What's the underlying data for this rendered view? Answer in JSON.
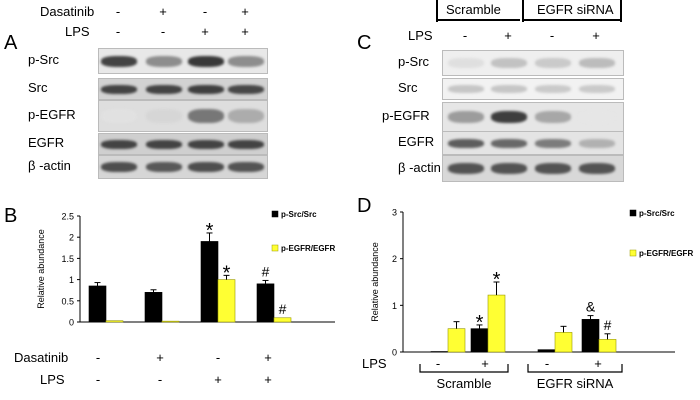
{
  "panel_letters": {
    "A": "A",
    "B": "B",
    "C": "C",
    "D": "D"
  },
  "panelA": {
    "treatments": [
      {
        "name": "Dasatinib",
        "signs": [
          "-",
          "+",
          "-",
          "+"
        ]
      },
      {
        "name": "LPS",
        "signs": [
          "-",
          "-",
          "+",
          "+"
        ]
      }
    ],
    "blots": [
      {
        "label": "p-Src",
        "bg": "#e8e8e8",
        "intensity": [
          0.8,
          0.45,
          0.85,
          0.45
        ]
      },
      {
        "label": "Src",
        "bg": "#d2d2d2",
        "intensity": [
          0.8,
          0.8,
          0.82,
          0.78
        ]
      },
      {
        "label": "p-EGFR",
        "bg": "#dedede",
        "intensity": [
          0.05,
          0.1,
          0.55,
          0.3
        ]
      },
      {
        "label": "EGFR",
        "bg": "#cfcfcf",
        "intensity": [
          0.8,
          0.8,
          0.8,
          0.8
        ]
      },
      {
        "label": "β -actin",
        "bg": "#d6d6d6",
        "intensity": [
          0.75,
          0.7,
          0.75,
          0.72
        ]
      }
    ]
  },
  "panelC": {
    "groups": [
      "Scramble",
      "EGFR siRNA"
    ],
    "treatment": {
      "name": "LPS",
      "signs": [
        "-",
        "+",
        "-",
        "+"
      ]
    },
    "blots": [
      {
        "label": "p-Src",
        "bg": "#efefef",
        "intensity": [
          0.08,
          0.22,
          0.18,
          0.25
        ]
      },
      {
        "label": "Src",
        "bg": "#f2f2f2",
        "intensity": [
          0.2,
          0.2,
          0.18,
          0.18
        ]
      },
      {
        "label": "p-EGFR",
        "bg": "#e6e6e6",
        "intensity": [
          0.4,
          0.85,
          0.35,
          0.05
        ]
      },
      {
        "label": "EGFR",
        "bg": "#e4e4e4",
        "intensity": [
          0.7,
          0.65,
          0.55,
          0.3
        ]
      },
      {
        "label": "β -actin",
        "bg": "#d8d8d8",
        "intensity": [
          0.75,
          0.75,
          0.75,
          0.75
        ]
      }
    ]
  },
  "panelB": {
    "treatments": [
      {
        "name": "Dasatinib",
        "signs": [
          "-",
          "+",
          "-",
          "+"
        ]
      },
      {
        "name": "LPS",
        "signs": [
          "-",
          "-",
          "+",
          "+"
        ]
      }
    ]
  },
  "panelD": {
    "groups": [
      "Scramble",
      "EGFR siRNA"
    ],
    "treatment": {
      "name": "LPS",
      "signs": [
        "-",
        "+",
        "-",
        "+"
      ]
    }
  },
  "colors": {
    "black_series": "#000000",
    "yellow_series": "#ffff33",
    "yellow_edge": "#999900"
  },
  "chart_data": [
    {
      "panel": "B",
      "type": "bar",
      "ylabel": "Relative abundance",
      "ylim": [
        0,
        2.5
      ],
      "yticks": [
        "0",
        "0.5",
        "1",
        "1.5",
        "2",
        "2.5"
      ],
      "series": [
        {
          "name": "p-Src/Src",
          "values": [
            0.85,
            0.7,
            1.9,
            0.9
          ],
          "errors": [
            0.08,
            0.06,
            0.2,
            0.08
          ],
          "annotations": [
            "",
            "",
            "*",
            "#"
          ]
        },
        {
          "name": "p-EGFR/EGFR",
          "values": [
            0.03,
            0.02,
            1.0,
            0.1
          ],
          "errors": [
            0.0,
            0.0,
            0.1,
            0.0
          ],
          "annotations": [
            "",
            "",
            "*",
            "#"
          ]
        }
      ],
      "legend_position": "top-right"
    },
    {
      "panel": "D",
      "type": "bar",
      "ylabel": "Relative abundance",
      "ylim": [
        0,
        3
      ],
      "yticks": [
        "0",
        "1",
        "2",
        "3"
      ],
      "series": [
        {
          "name": "p-Src/Src",
          "values": [
            0.0,
            0.5,
            0.05,
            0.7
          ],
          "errors": [
            0.0,
            0.08,
            0.0,
            0.08
          ],
          "annotations": [
            "",
            "*",
            "",
            "&"
          ]
        },
        {
          "name": "p-EGFR/EGFR",
          "values": [
            0.5,
            1.22,
            0.42,
            0.27
          ],
          "errors": [
            0.15,
            0.28,
            0.13,
            0.12
          ],
          "annotations": [
            "",
            "*",
            "",
            "#"
          ]
        }
      ],
      "legend_position": "top-right"
    }
  ]
}
